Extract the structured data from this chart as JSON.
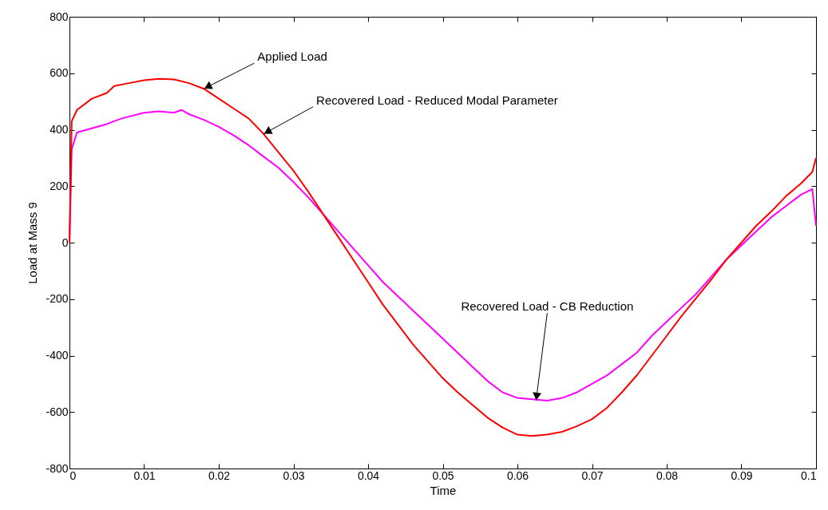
{
  "chart_data": {
    "type": "line",
    "xlabel": "Time",
    "ylabel": "Load at Mass 9",
    "xlim": [
      0,
      0.1
    ],
    "xticks": [
      0,
      0.01,
      0.02,
      0.03,
      0.04,
      0.05,
      0.06,
      0.07,
      0.08,
      0.09,
      0.1
    ],
    "ylim": [
      -800,
      800
    ],
    "yticks": [
      -800,
      -600,
      -400,
      -200,
      0,
      200,
      400,
      600,
      800
    ],
    "grid": false,
    "marker": "none",
    "line_style": "solid",
    "series": [
      {
        "color": "#ff00ff",
        "x": [
          0,
          0.0003,
          0.001,
          0.003,
          0.005,
          0.007,
          0.01,
          0.012,
          0.014,
          0.015,
          0.016,
          0.018,
          0.02,
          0.022,
          0.024,
          0.026,
          0.028,
          0.03,
          0.032,
          0.034,
          0.036,
          0.038,
          0.04,
          0.042,
          0.044,
          0.046,
          0.048,
          0.05,
          0.052,
          0.054,
          0.056,
          0.058,
          0.06,
          0.062,
          0.064,
          0.066,
          0.068,
          0.07,
          0.072,
          0.074,
          0.076,
          0.078,
          0.08,
          0.082,
          0.084,
          0.086,
          0.088,
          0.09,
          0.092,
          0.094,
          0.096,
          0.098,
          0.0995,
          0.1
        ],
        "values": [
          0,
          330,
          390,
          405,
          420,
          440,
          460,
          465,
          460,
          470,
          455,
          435,
          410,
          380,
          345,
          305,
          265,
          215,
          160,
          100,
          40,
          -20,
          -80,
          -140,
          -190,
          -240,
          -290,
          -340,
          -390,
          -440,
          -490,
          -530,
          -550,
          -555,
          -560,
          -550,
          -530,
          -500,
          -470,
          -430,
          -390,
          -330,
          -280,
          -230,
          -180,
          -120,
          -60,
          -10,
          40,
          90,
          130,
          170,
          190,
          60
        ]
      },
      {
        "color": "#ff0000",
        "x": [
          0,
          0.0003,
          0.001,
          0.003,
          0.005,
          0.006,
          0.008,
          0.01,
          0.012,
          0.014,
          0.016,
          0.018,
          0.02,
          0.022,
          0.024,
          0.026,
          0.028,
          0.03,
          0.032,
          0.034,
          0.036,
          0.038,
          0.04,
          0.042,
          0.044,
          0.046,
          0.048,
          0.05,
          0.052,
          0.054,
          0.056,
          0.058,
          0.06,
          0.062,
          0.064,
          0.066,
          0.068,
          0.07,
          0.072,
          0.074,
          0.076,
          0.078,
          0.08,
          0.082,
          0.084,
          0.086,
          0.088,
          0.09,
          0.092,
          0.094,
          0.096,
          0.098,
          0.0995,
          0.1
        ],
        "values": [
          0,
          430,
          470,
          510,
          530,
          555,
          565,
          575,
          580,
          578,
          565,
          545,
          510,
          475,
          440,
          385,
          320,
          255,
          180,
          100,
          20,
          -60,
          -140,
          -220,
          -290,
          -360,
          -420,
          -480,
          -530,
          -575,
          -620,
          -655,
          -680,
          -685,
          -680,
          -670,
          -650,
          -625,
          -585,
          -530,
          -470,
          -400,
          -330,
          -260,
          -195,
          -130,
          -60,
          0,
          60,
          110,
          165,
          210,
          250,
          300
        ]
      }
    ],
    "annotations": [
      {
        "text": "Applied Load",
        "x": 0.018,
        "y": 545
      },
      {
        "text": "Recovered Load - Reduced Modal Parameter",
        "x": 0.026,
        "y": 385
      },
      {
        "text": "Recovered Load - CB Reduction",
        "x": 0.0625,
        "y": -560
      }
    ]
  }
}
